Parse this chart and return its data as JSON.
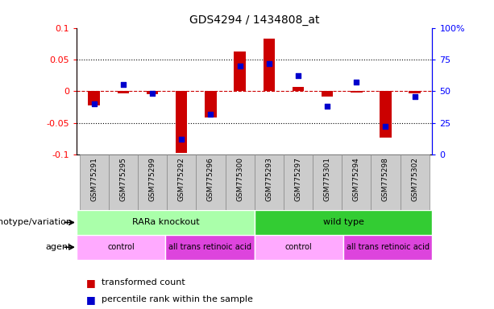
{
  "title": "GDS4294 / 1434808_at",
  "samples": [
    "GSM775291",
    "GSM775295",
    "GSM775299",
    "GSM775292",
    "GSM775296",
    "GSM775300",
    "GSM775293",
    "GSM775297",
    "GSM775301",
    "GSM775294",
    "GSM775298",
    "GSM775302"
  ],
  "transformed_count": [
    -0.022,
    -0.003,
    -0.005,
    -0.098,
    -0.042,
    0.062,
    0.083,
    0.007,
    -0.008,
    -0.002,
    -0.073,
    -0.004
  ],
  "percentile_rank": [
    40,
    55,
    48,
    12,
    32,
    70,
    72,
    62,
    38,
    57,
    22,
    46
  ],
  "ylim_left": [
    -0.1,
    0.1
  ],
  "ylim_right": [
    0,
    100
  ],
  "yticks_left": [
    -0.1,
    -0.05,
    0,
    0.05,
    0.1
  ],
  "yticks_right": [
    0,
    25,
    50,
    75,
    100
  ],
  "bar_color": "#CC0000",
  "dot_color": "#0000CC",
  "dashed_line_color": "#CC0000",
  "tick_box_color": "#CCCCCC",
  "tick_box_edge": "#888888",
  "genotype_groups": [
    {
      "label": "RARa knockout",
      "start": 0,
      "end": 6,
      "color": "#AAFFAA"
    },
    {
      "label": "wild type",
      "start": 6,
      "end": 12,
      "color": "#33CC33"
    }
  ],
  "agent_groups": [
    {
      "label": "control",
      "start": 0,
      "end": 3,
      "color": "#FFAAFF"
    },
    {
      "label": "all trans retinoic acid",
      "start": 3,
      "end": 6,
      "color": "#DD44DD"
    },
    {
      "label": "control",
      "start": 6,
      "end": 9,
      "color": "#FFAAFF"
    },
    {
      "label": "all trans retinoic acid",
      "start": 9,
      "end": 12,
      "color": "#DD44DD"
    }
  ],
  "legend_items": [
    {
      "label": "transformed count",
      "color": "#CC0000"
    },
    {
      "label": "percentile rank within the sample",
      "color": "#0000CC"
    }
  ],
  "genotype_label": "genotype/variation",
  "agent_label": "agent",
  "bar_width": 0.4,
  "dot_size": 20
}
